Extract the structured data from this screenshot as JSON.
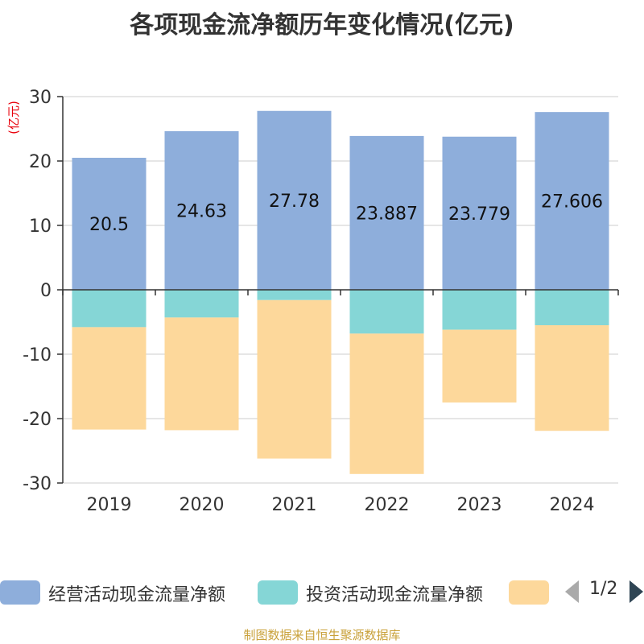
{
  "title": "各项现金流净额历年变化情况(亿元)",
  "footer": "制图数据来自恒生聚源数据库",
  "pager": "1/2",
  "colors": {
    "operating": "#8eaedb",
    "investing": "#85d6d6",
    "financing": "#fdd89b",
    "unit_label": "#e8000b",
    "grid": "#cccccc",
    "axis": "#333333"
  },
  "chart_data": {
    "type": "bar",
    "stacked": true,
    "unit": "(亿元)",
    "categories": [
      "2019",
      "2020",
      "2021",
      "2022",
      "2023",
      "2024"
    ],
    "ylim": [
      -30,
      30
    ],
    "yticks": [
      30,
      20,
      10,
      0,
      -10,
      -20,
      -30
    ],
    "series": [
      {
        "name": "经营活动现金流量净额",
        "values": [
          20.5,
          24.63,
          27.78,
          23.887,
          23.779,
          27.606
        ],
        "labels": [
          "20.5",
          "24.63",
          "27.78",
          "23.887",
          "23.779",
          "27.606"
        ]
      },
      {
        "name": "投资活动现金流量净额",
        "values": [
          -5.8,
          -4.3,
          -1.6,
          -6.8,
          -6.2,
          -5.5
        ]
      },
      {
        "name": "",
        "values": [
          -15.9,
          -17.5,
          -24.6,
          -21.8,
          -11.3,
          -16.4
        ]
      }
    ],
    "legend": [
      "经营活动现金流量净额",
      "投资活动现金流量净额",
      ""
    ]
  }
}
